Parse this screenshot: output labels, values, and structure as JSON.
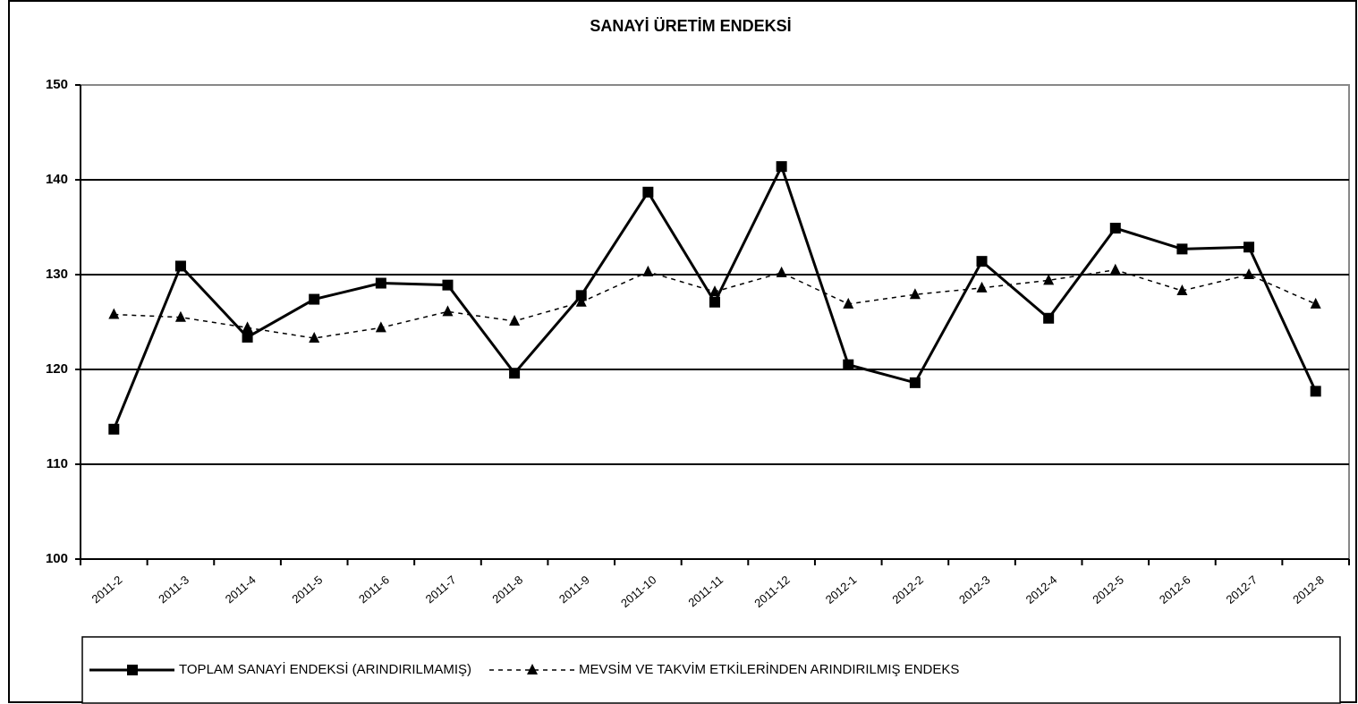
{
  "chart_data": {
    "type": "line",
    "title": "SANAYİ ÜRETİM ENDEKSİ",
    "categories": [
      "2011-2",
      "2011-3",
      "2011-4",
      "2011-5",
      "2011-6",
      "2011-7",
      "2011-8",
      "2011-9",
      "2011-10",
      "2011-11",
      "2011-12",
      "2012-1",
      "2012-2",
      "2012-3",
      "2012-4",
      "2012-5",
      "2012-6",
      "2012-7",
      "2012-8"
    ],
    "series": [
      {
        "name": "TOPLAM SANAYİ ENDEKSİ (ARINDIRILMAMIŞ)",
        "color": "#000000",
        "marker": "square",
        "dash": false,
        "values": [
          113.7,
          130.9,
          123.4,
          127.4,
          129.1,
          128.9,
          119.6,
          127.8,
          138.7,
          127.1,
          141.4,
          120.5,
          118.6,
          131.4,
          125.4,
          134.9,
          132.7,
          132.9,
          117.7
        ]
      },
      {
        "name": "MEVSİM VE TAKVİM ETKİLERİNDEN ARINDIRILMIŞ ENDEKS",
        "color": "#000000",
        "marker": "triangle",
        "dash": true,
        "values": [
          125.8,
          125.5,
          124.4,
          123.3,
          124.4,
          126.1,
          125.1,
          127.1,
          130.3,
          128.2,
          130.2,
          126.9,
          127.9,
          128.6,
          129.4,
          130.5,
          128.3,
          130.0,
          126.9
        ]
      }
    ],
    "ylim": [
      100,
      150
    ],
    "yticks": [
      100,
      110,
      120,
      130,
      140,
      150
    ],
    "grid": true,
    "legend": "bottom"
  }
}
